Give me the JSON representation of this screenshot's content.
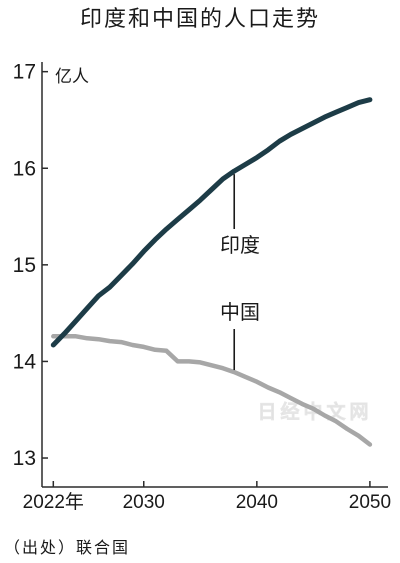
{
  "source": "（出处）联合国",
  "watermark": "日经中文网",
  "colors": {
    "india_line": "#1d3c47",
    "china_line": "#a7a7a7",
    "axis": "#2b2b2b",
    "pointer": "#1a1a1a",
    "text": "#1a1a1a",
    "watermark": "#cfcfcf",
    "background": "#ffffff"
  },
  "chart_data": {
    "type": "line",
    "title": "印度和中国的人口走势",
    "xlabel": "",
    "ylabel": "亿人",
    "xlim": [
      2021,
      2051.6
    ],
    "ylim": [
      12.7,
      17.1
    ],
    "grid": false,
    "xticks": [
      2022,
      2030,
      2040,
      2050
    ],
    "xtick_labels": [
      "2022年",
      "2030",
      "2040",
      "2050"
    ],
    "yticks": [
      13,
      14,
      15,
      16,
      17
    ],
    "x": [
      2022,
      2023,
      2024,
      2025,
      2026,
      2027,
      2028,
      2029,
      2030,
      2031,
      2032,
      2033,
      2034,
      2035,
      2036,
      2037,
      2038,
      2039,
      2040,
      2041,
      2042,
      2043,
      2044,
      2045,
      2046,
      2047,
      2048,
      2049,
      2050
    ],
    "series": [
      {
        "name": "印度",
        "values": [
          14.17,
          14.29,
          14.42,
          14.55,
          14.68,
          14.77,
          14.89,
          15.01,
          15.14,
          15.26,
          15.37,
          15.47,
          15.57,
          15.67,
          15.78,
          15.89,
          15.97,
          16.04,
          16.11,
          16.19,
          16.28,
          16.35,
          16.41,
          16.47,
          16.53,
          16.58,
          16.63,
          16.68,
          16.71
        ]
      },
      {
        "name": "中国",
        "values": [
          14.26,
          14.26,
          14.26,
          14.24,
          14.23,
          14.21,
          14.2,
          14.17,
          14.15,
          14.12,
          14.11,
          14.0,
          14.0,
          13.99,
          13.96,
          13.93,
          13.89,
          13.84,
          13.79,
          13.73,
          13.68,
          13.62,
          13.56,
          13.51,
          13.44,
          13.38,
          13.3,
          13.23,
          13.14
        ]
      }
    ]
  }
}
